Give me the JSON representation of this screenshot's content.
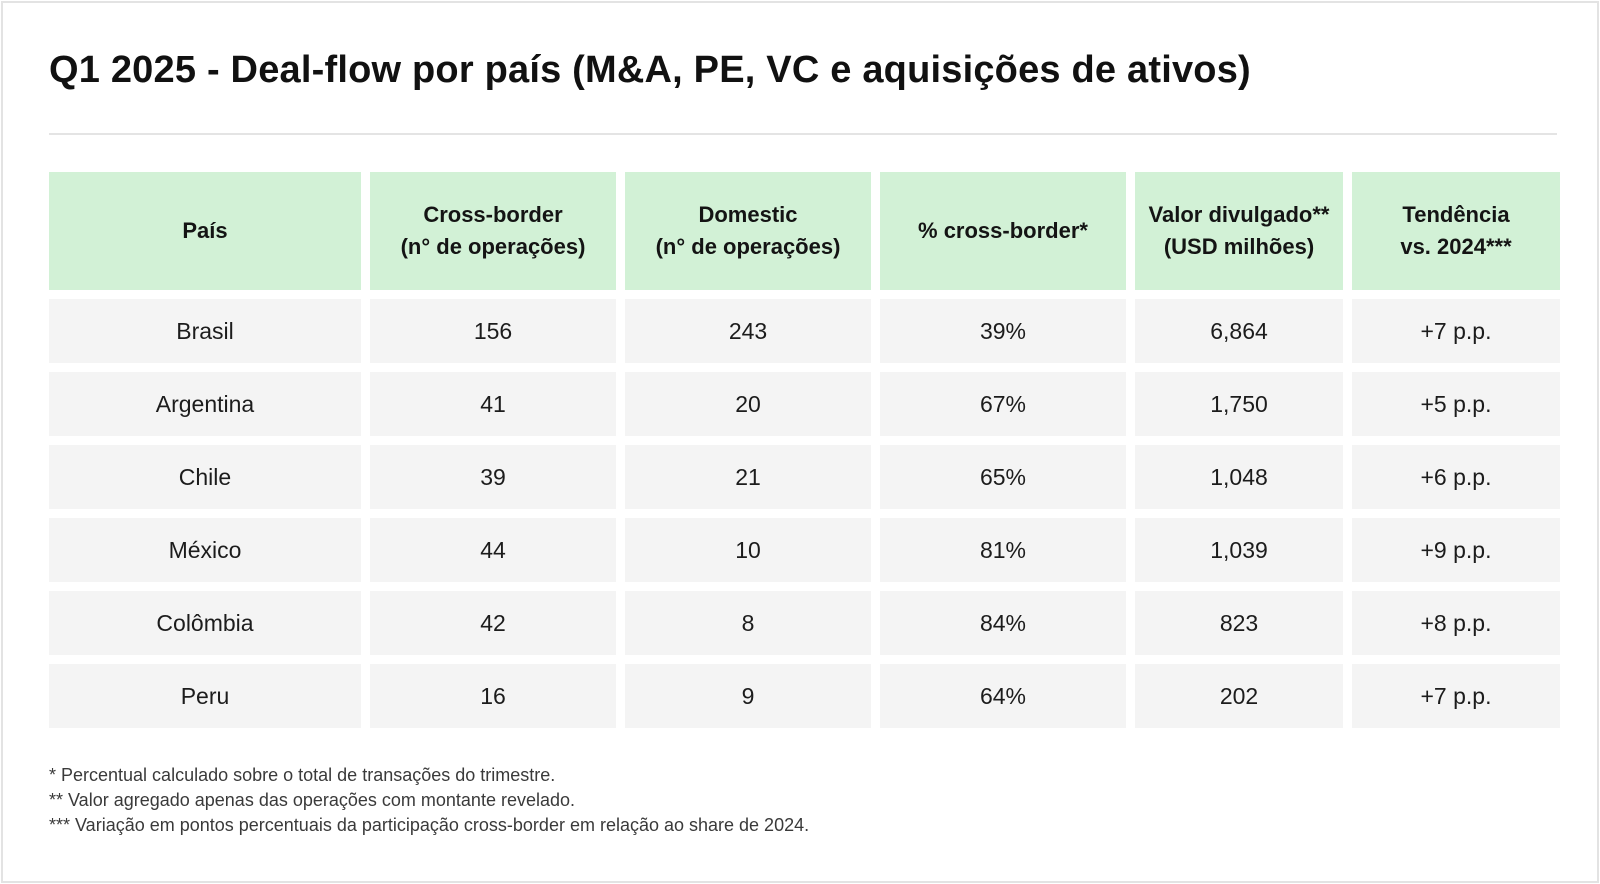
{
  "title": "Q1 2025 - Deal-flow por país (M&A, PE, VC e aquisições de ativos)",
  "table": {
    "headers": [
      {
        "line1": "País",
        "line2": ""
      },
      {
        "line1": "Cross-border",
        "line2": "(n° de operações)"
      },
      {
        "line1": "Domestic",
        "line2": "(n° de operações)"
      },
      {
        "line1": "% cross-border*",
        "line2": ""
      },
      {
        "line1": "Valor divulgado**",
        "line2": "(USD milhões)"
      },
      {
        "line1": "Tendência",
        "line2": "vs. 2024***"
      }
    ],
    "rows": [
      [
        "Brasil",
        "156",
        "243",
        "39%",
        "6,864",
        "+7 p.p."
      ],
      [
        "Argentina",
        "41",
        "20",
        "67%",
        "1,750",
        "+5 p.p."
      ],
      [
        "Chile",
        "39",
        "21",
        "65%",
        "1,048",
        "+6 p.p."
      ],
      [
        "México",
        "44",
        "10",
        "81%",
        "1,039",
        "+9 p.p."
      ],
      [
        "Colômbia",
        "42",
        "8",
        "84%",
        "823",
        "+8 p.p."
      ],
      [
        "Peru",
        "16",
        "9",
        "64%",
        "202",
        "+7 p.p."
      ]
    ]
  },
  "footnotes": [
    "* Percentual calculado sobre o total de transações do trimestre.",
    "** Valor agregado apenas das operações com montante revelado.",
    "*** Variação em pontos percentuais da participação cross-border em relação ao share de 2024."
  ]
}
